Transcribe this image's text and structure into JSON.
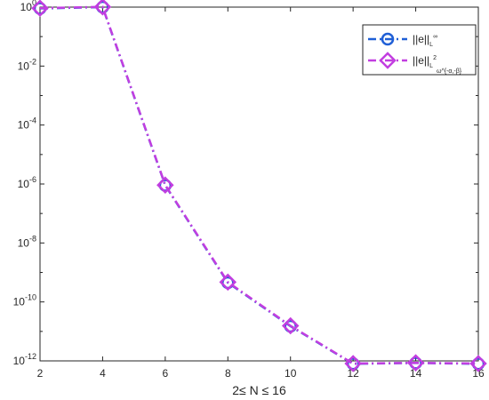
{
  "chart_data": {
    "type": "line",
    "xlabel": "2≤ N ≤ 16",
    "ylabel": "",
    "title": "",
    "xlim": [
      2,
      16
    ],
    "ylim_exponents": [
      -12,
      0
    ],
    "yscale": "log",
    "grid": false,
    "legend_position": "top-right",
    "x_ticks": [
      2,
      4,
      6,
      8,
      10,
      12,
      14,
      16
    ],
    "y_tick_base": "10",
    "y_tick_exponents": [
      "0",
      "-2",
      "-4",
      "-6",
      "-8",
      "-10",
      "-12"
    ],
    "x": [
      2,
      4,
      6,
      8,
      10,
      12,
      14,
      16
    ],
    "series": [
      {
        "legend_main": "||e||",
        "legend_sub": "L",
        "legend_sup": "∞",
        "marker": "circle",
        "color": "#1f5fd6",
        "values": [
          0.9,
          1.0,
          9e-07,
          4.5e-10,
          1.5e-11,
          8e-13,
          8.5e-13,
          8e-13
        ]
      },
      {
        "legend_main": "||e||",
        "legend_sub": "L",
        "legend_sup": "2",
        "legend_subsub": "ω^{-α,-β}",
        "marker": "diamond",
        "color": "#c23ee0",
        "values": [
          0.92,
          1.02,
          9.2e-07,
          4.7e-10,
          1.55e-11,
          8.1e-13,
          8.6e-13,
          8.1e-13
        ]
      }
    ]
  }
}
